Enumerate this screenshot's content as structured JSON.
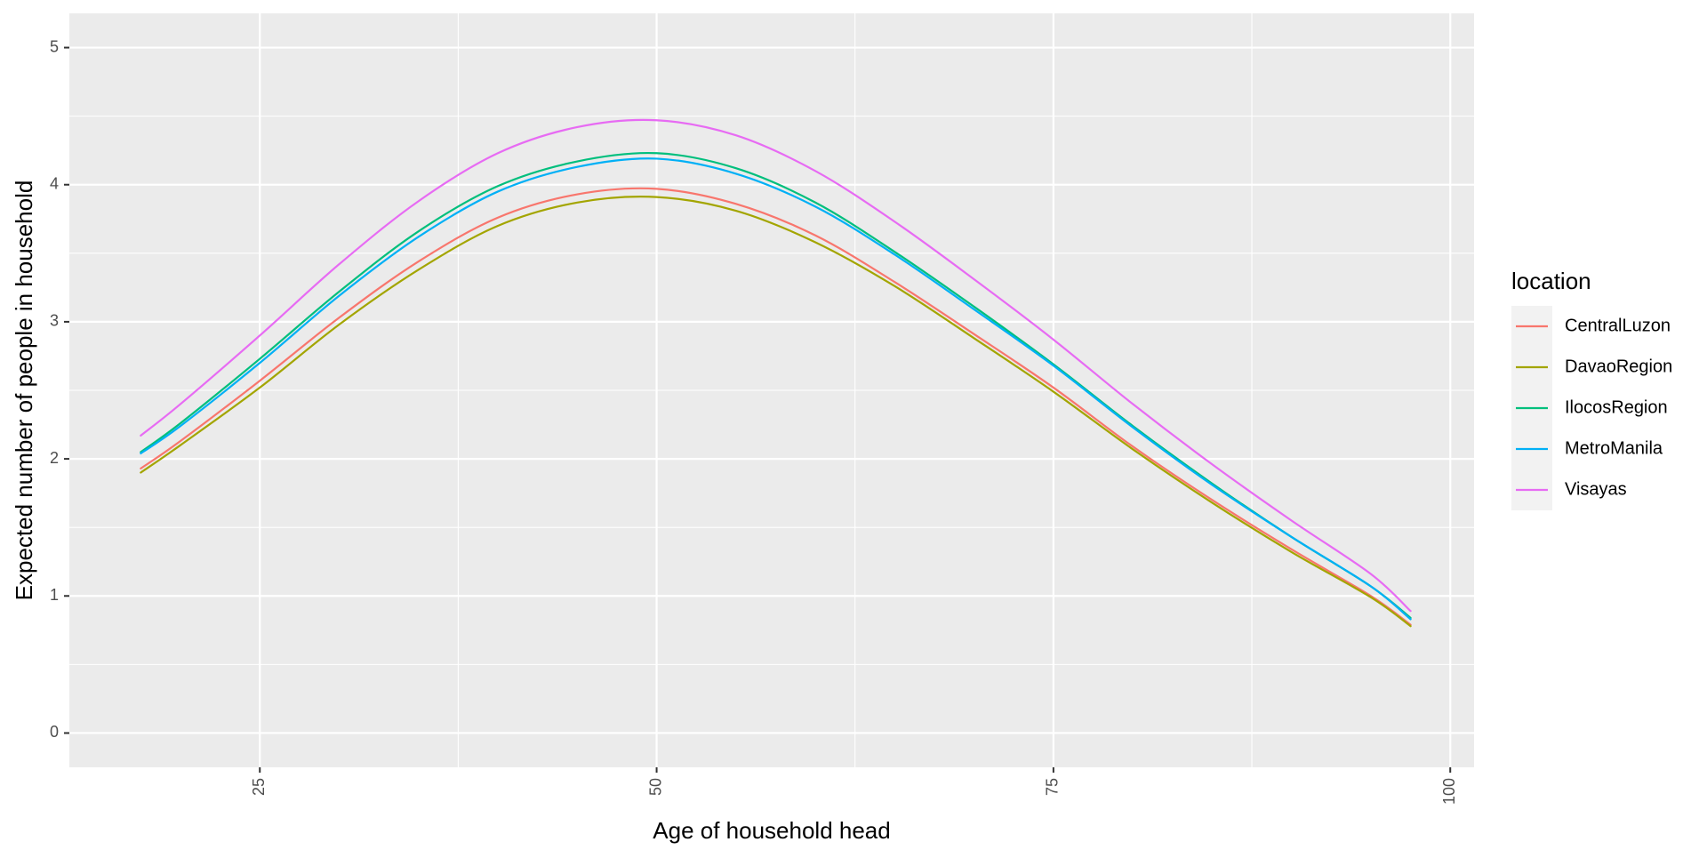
{
  "chart_data": {
    "type": "line",
    "title": "",
    "xlabel": "Age of household head",
    "ylabel": "Expected number of people in household",
    "xlim": [
      13,
      101.5
    ],
    "ylim": [
      -0.25,
      5.25
    ],
    "x_ticks": [
      25,
      50,
      75,
      100
    ],
    "y_ticks": [
      0,
      1,
      2,
      3,
      4,
      5
    ],
    "grid": true,
    "legend": {
      "title": "location",
      "position": "right"
    },
    "x": [
      17.5,
      20,
      25,
      30,
      35,
      40,
      45,
      50,
      55,
      60,
      65,
      70,
      75,
      80,
      85,
      90,
      95,
      97.5
    ],
    "series": [
      {
        "name": "CentralLuzon",
        "color": "#F8766D",
        "values": [
          1.93,
          2.13,
          2.57,
          3.03,
          3.44,
          3.76,
          3.93,
          3.97,
          3.86,
          3.63,
          3.29,
          2.91,
          2.52,
          2.09,
          1.7,
          1.34,
          1.0,
          0.79
        ]
      },
      {
        "name": "DavaoRegion",
        "color": "#A3A500",
        "values": [
          1.9,
          2.1,
          2.52,
          2.98,
          3.38,
          3.7,
          3.87,
          3.91,
          3.81,
          3.58,
          3.26,
          2.88,
          2.49,
          2.07,
          1.68,
          1.32,
          0.99,
          0.78
        ]
      },
      {
        "name": "IlocosRegion",
        "color": "#00BF7D",
        "values": [
          2.05,
          2.26,
          2.73,
          3.22,
          3.66,
          3.99,
          4.17,
          4.23,
          4.12,
          3.87,
          3.51,
          3.11,
          2.69,
          2.24,
          1.82,
          1.43,
          1.07,
          0.84
        ]
      },
      {
        "name": "MetroManila",
        "color": "#00B0F6",
        "values": [
          2.04,
          2.24,
          2.7,
          3.19,
          3.62,
          3.95,
          4.13,
          4.19,
          4.08,
          3.84,
          3.49,
          3.09,
          2.68,
          2.23,
          1.81,
          1.43,
          1.07,
          0.83
        ]
      },
      {
        "name": "Visayas",
        "color": "#E76BF3",
        "values": [
          2.17,
          2.4,
          2.9,
          3.42,
          3.88,
          4.23,
          4.42,
          4.47,
          4.36,
          4.1,
          3.73,
          3.31,
          2.87,
          2.4,
          1.96,
          1.55,
          1.16,
          0.89
        ]
      }
    ]
  }
}
